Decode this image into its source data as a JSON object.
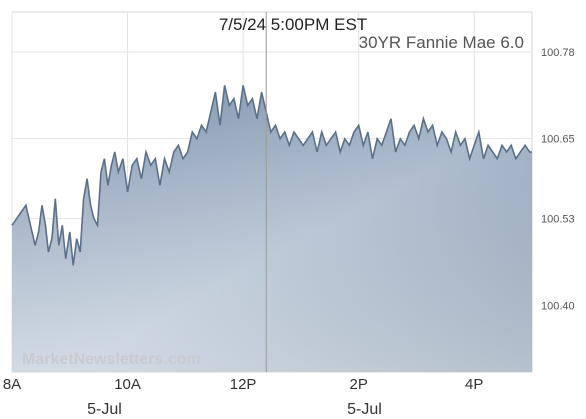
{
  "chart_data": {
    "type": "area",
    "title": "7/5/24 5:00PM EST",
    "series_name": "30YR Fannie Mae 6.0",
    "watermark": "MarketNewsletters.com",
    "ylim": [
      100.3,
      100.84
    ],
    "grid": true,
    "y_ticks": [
      {
        "value": 100.78,
        "label": "100.78"
      },
      {
        "value": 100.65,
        "label": "100.65"
      },
      {
        "value": 100.53,
        "label": "100.53"
      },
      {
        "value": 100.4,
        "label": "100.40"
      }
    ],
    "x_ticks": [
      {
        "hour": 8,
        "label": "8A"
      },
      {
        "hour": 10,
        "label": "10A"
      },
      {
        "hour": 12,
        "label": "12P"
      },
      {
        "hour": 14,
        "label": "2P"
      },
      {
        "hour": 16,
        "label": "4P"
      }
    ],
    "x_range_hours": [
      8,
      17
    ],
    "date_labels": [
      {
        "hour": 9.6,
        "label": "5-Jul"
      },
      {
        "hour": 14.1,
        "label": "5-Jul"
      }
    ],
    "marker_hour": 12.4,
    "x": [
      8.0,
      8.08,
      8.16,
      8.24,
      8.32,
      8.4,
      8.46,
      8.52,
      8.58,
      8.63,
      8.69,
      8.75,
      8.81,
      8.87,
      8.93,
      9.0,
      9.06,
      9.12,
      9.18,
      9.24,
      9.3,
      9.36,
      9.42,
      9.48,
      9.54,
      9.6,
      9.66,
      9.72,
      9.78,
      9.84,
      9.92,
      10.0,
      10.08,
      10.16,
      10.24,
      10.32,
      10.4,
      10.48,
      10.56,
      10.64,
      10.72,
      10.8,
      10.88,
      10.96,
      11.04,
      11.12,
      11.2,
      11.28,
      11.36,
      11.44,
      11.52,
      11.6,
      11.68,
      11.76,
      11.84,
      11.92,
      12.0,
      12.08,
      12.16,
      12.24,
      12.32,
      12.4,
      12.48,
      12.56,
      12.64,
      12.72,
      12.8,
      12.88,
      12.96,
      13.04,
      13.12,
      13.2,
      13.28,
      13.36,
      13.44,
      13.52,
      13.6,
      13.68,
      13.76,
      13.84,
      13.92,
      14.0,
      14.08,
      14.16,
      14.24,
      14.32,
      14.4,
      14.48,
      14.56,
      14.64,
      14.72,
      14.8,
      14.88,
      14.96,
      15.04,
      15.12,
      15.2,
      15.28,
      15.36,
      15.44,
      15.52,
      15.6,
      15.68,
      15.76,
      15.84,
      15.92,
      16.0,
      16.08,
      16.16,
      16.24,
      16.32,
      16.4,
      16.48,
      16.56,
      16.64,
      16.72,
      16.8,
      16.88,
      16.96,
      17.0
    ],
    "y": [
      100.52,
      100.53,
      100.54,
      100.55,
      100.52,
      100.49,
      100.51,
      100.55,
      100.52,
      100.48,
      100.5,
      100.56,
      100.49,
      100.52,
      100.47,
      100.51,
      100.46,
      100.5,
      100.48,
      100.56,
      100.59,
      100.55,
      100.53,
      100.52,
      100.6,
      100.62,
      100.58,
      100.61,
      100.63,
      100.6,
      100.62,
      100.57,
      100.61,
      100.62,
      100.59,
      100.63,
      100.61,
      100.62,
      100.58,
      100.62,
      100.6,
      100.63,
      100.64,
      100.62,
      100.63,
      100.66,
      100.65,
      100.67,
      100.66,
      100.69,
      100.72,
      100.67,
      100.73,
      100.7,
      100.71,
      100.68,
      100.73,
      100.7,
      100.71,
      100.68,
      100.72,
      100.69,
      100.66,
      100.67,
      100.65,
      100.66,
      100.64,
      100.66,
      100.65,
      100.64,
      100.65,
      100.66,
      100.63,
      100.66,
      100.64,
      100.65,
      100.66,
      100.63,
      100.65,
      100.64,
      100.66,
      100.67,
      100.64,
      100.66,
      100.62,
      100.65,
      100.64,
      100.66,
      100.68,
      100.63,
      100.65,
      100.64,
      100.66,
      100.67,
      100.65,
      100.68,
      100.66,
      100.67,
      100.64,
      100.66,
      100.65,
      100.63,
      100.66,
      100.64,
      100.65,
      100.62,
      100.64,
      100.66,
      100.62,
      100.64,
      100.63,
      100.62,
      100.64,
      100.63,
      100.64,
      100.62,
      100.63,
      100.64,
      100.63,
      100.63
    ]
  }
}
